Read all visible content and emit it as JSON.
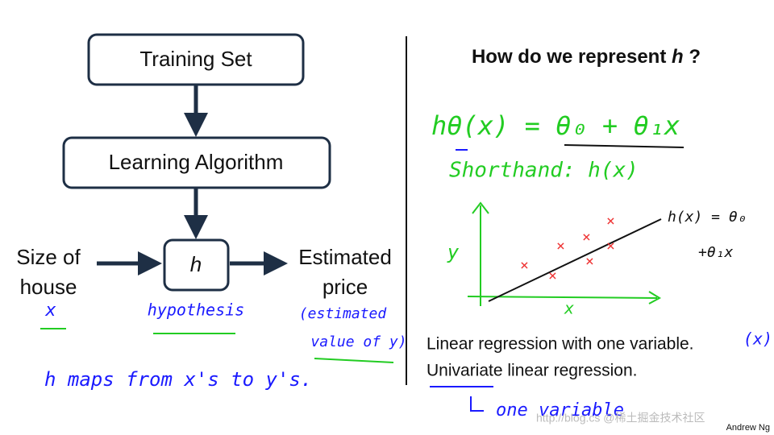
{
  "diagram": {
    "nodes": [
      "Training Set",
      "Learning Algorithm",
      "h"
    ],
    "input": [
      "Size of",
      "house"
    ],
    "output": [
      "Estimated",
      "price"
    ]
  },
  "title": [
    "How do we represent",
    "h",
    "?"
  ],
  "notes": [
    "Linear regression with one variable.",
    "Univariate linear regression."
  ],
  "handwriting": {
    "x_note": "x",
    "hypothesis": "hypothesis",
    "estimated": [
      "(estimated",
      "value of y)"
    ],
    "maps": "h maps from x's to y's.",
    "hypothesis_formula": "hθ(x) = θ₀ + θ₁x",
    "shorthand": "Shorthand: h(x)",
    "y_axis": "y",
    "x_axis": "x",
    "plot_formula": [
      "h(x) = θ₀",
      "+θ₁x"
    ],
    "x_paren": "(x)",
    "one_variable": "one variable"
  },
  "watermark": "http://blog.cs @稀土掘金技术社区",
  "credit": "Andrew Ng"
}
